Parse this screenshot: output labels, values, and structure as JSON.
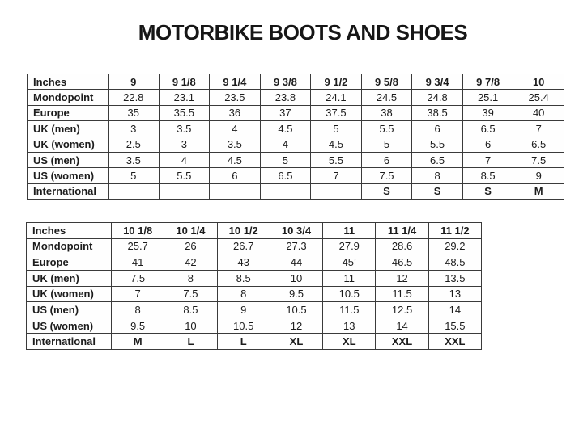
{
  "page": {
    "title": "MOTORBIKE BOOTS AND SHOES"
  },
  "colors": {
    "background": "#ffffff",
    "text": "#1c1c1c",
    "border": "#3a3a3a"
  },
  "tables": [
    {
      "name": "size-conversion-table-upper",
      "rows": [
        {
          "label": "Inches",
          "bold": true,
          "values": [
            "9",
            "9 1/8",
            "9 1/4",
            "9 3/8",
            "9 1/2",
            "9 5/8",
            "9 3/4",
            "9 7/8",
            "10"
          ]
        },
        {
          "label": "Mondopoint",
          "bold": false,
          "values": [
            "22.8",
            "23.1",
            "23.5",
            "23.8",
            "24.1",
            "24.5",
            "24.8",
            "25.1",
            "25.4"
          ]
        },
        {
          "label": "Europe",
          "bold": false,
          "values": [
            "35",
            "35.5",
            "36",
            "37",
            "37.5",
            "38",
            "38.5",
            "39",
            "40"
          ]
        },
        {
          "label": "UK (men)",
          "bold": false,
          "values": [
            "3",
            "3.5",
            "4",
            "4.5",
            "5",
            "5.5",
            "6",
            "6.5",
            "7"
          ]
        },
        {
          "label": "UK (women)",
          "bold": false,
          "values": [
            "2.5",
            "3",
            "3.5",
            "4",
            "4.5",
            "5",
            "5.5",
            "6",
            "6.5"
          ]
        },
        {
          "label": "US (men)",
          "bold": false,
          "values": [
            "3.5",
            "4",
            "4.5",
            "5",
            "5.5",
            "6",
            "6.5",
            "7",
            "7.5"
          ]
        },
        {
          "label": "US (women)",
          "bold": false,
          "values": [
            "5",
            "5.5",
            "6",
            "6.5",
            "7",
            "7.5",
            "8",
            "8.5",
            "9"
          ]
        },
        {
          "label": "International",
          "bold": true,
          "values": [
            "",
            "",
            "",
            "",
            "",
            "S",
            "S",
            "S",
            "M"
          ]
        }
      ]
    },
    {
      "name": "size-conversion-table-lower",
      "rows": [
        {
          "label": "Inches",
          "bold": true,
          "values": [
            "10 1/8",
            "10 1/4",
            "10 1/2",
            "10 3/4",
            "11",
            "11 1/4",
            "11 1/2"
          ]
        },
        {
          "label": "Mondopoint",
          "bold": false,
          "values": [
            "25.7",
            "26",
            "26.7",
            "27.3",
            "27.9",
            "28.6",
            "29.2"
          ]
        },
        {
          "label": "Europe",
          "bold": false,
          "values": [
            "41",
            "42",
            "43",
            "44",
            "45’",
            "46.5",
            "48.5"
          ]
        },
        {
          "label": "UK (men)",
          "bold": false,
          "values": [
            "7.5",
            "8",
            "8.5",
            "10",
            "11",
            "12",
            "13.5"
          ]
        },
        {
          "label": "UK (women)",
          "bold": false,
          "values": [
            "7",
            "7.5",
            "8",
            "9.5",
            "10.5",
            "11.5",
            "13"
          ]
        },
        {
          "label": "US (men)",
          "bold": false,
          "values": [
            "8",
            "8.5",
            "9",
            "10.5",
            "11.5",
            "12.5",
            "14"
          ]
        },
        {
          "label": "US (women)",
          "bold": false,
          "values": [
            "9.5",
            "10",
            "10.5",
            "12",
            "13",
            "14",
            "15.5"
          ]
        },
        {
          "label": "International",
          "bold": true,
          "values": [
            "M",
            "L",
            "L",
            "XL",
            "XL",
            "XXL",
            "XXL"
          ]
        }
      ]
    }
  ]
}
